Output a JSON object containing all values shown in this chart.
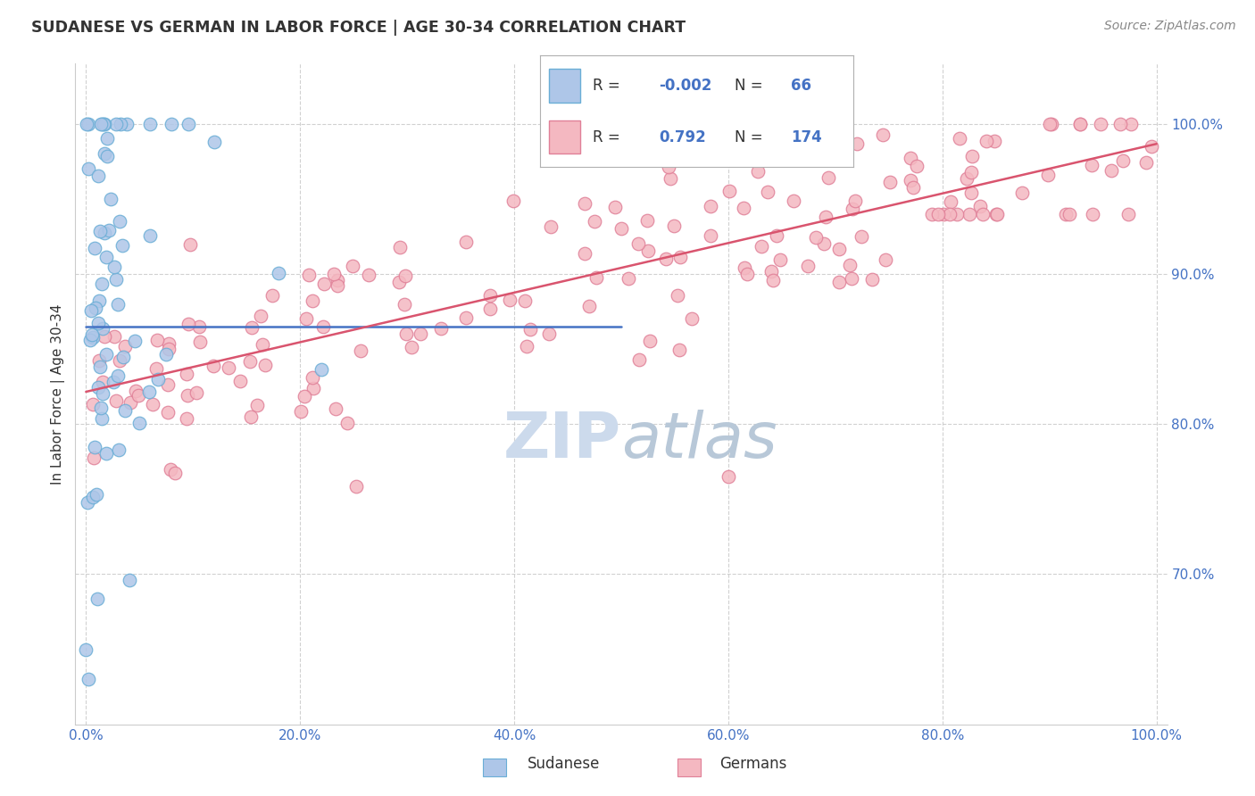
{
  "title": "SUDANESE VS GERMAN IN LABOR FORCE | AGE 30-34 CORRELATION CHART",
  "source_text": "Source: ZipAtlas.com",
  "ylabel": "In Labor Force | Age 30-34",
  "sudanese_color": "#aec6e8",
  "german_color": "#f4b8c1",
  "sudanese_edge": "#6aaed6",
  "german_edge": "#e08098",
  "blue_line_color": "#4472c4",
  "pink_line_color": "#d9546e",
  "R_sudanese_str": "-0.002",
  "N_sudanese_str": "66",
  "R_german_str": "0.792",
  "N_german_str": "174",
  "watermark_text": "ZIPatlas",
  "watermark_color": "#ccdaec",
  "background_color": "#ffffff",
  "grid_color": "#cccccc",
  "tick_color": "#4472c4",
  "label_color": "#333333",
  "title_color": "#333333",
  "source_color": "#888888",
  "xlim": [
    -1,
    101
  ],
  "ylim": [
    60,
    104
  ],
  "x_ticks": [
    0,
    20,
    40,
    60,
    80,
    100
  ],
  "y_ticks": [
    70,
    80,
    90,
    100
  ],
  "sud_mean_y": 86.5
}
